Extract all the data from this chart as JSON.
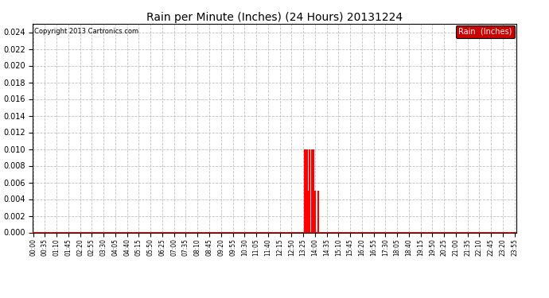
{
  "title": "Rain per Minute (Inches) (24 Hours) 20131224",
  "copyright_text": "Copyright 2013 Cartronics.com",
  "legend_label": "Rain  (Inches)",
  "legend_bg": "#cc0000",
  "legend_text_color": "#ffffff",
  "bar_color": "#ff0000",
  "baseline_color": "#ff0000",
  "background_color": "#ffffff",
  "grid_color": "#c0c0c0",
  "ylim": [
    0.0,
    0.025
  ],
  "yticks": [
    0.0,
    0.002,
    0.004,
    0.006,
    0.008,
    0.01,
    0.012,
    0.014,
    0.016,
    0.018,
    0.02,
    0.022,
    0.024
  ],
  "total_minutes": 1440,
  "rain_data": {
    "810": 0.01,
    "813": 0.01,
    "815": 0.01,
    "817": 0.01,
    "820": 0.005,
    "823": 0.01,
    "825": 0.01,
    "830": 0.01,
    "835": 0.01,
    "840": 0.005,
    "850": 0.005
  },
  "x_label_times": [
    "00:00",
    "00:35",
    "01:10",
    "01:45",
    "02:20",
    "02:55",
    "03:30",
    "04:05",
    "04:40",
    "05:15",
    "05:50",
    "06:25",
    "07:00",
    "07:35",
    "08:10",
    "08:45",
    "09:20",
    "09:55",
    "10:30",
    "11:05",
    "11:40",
    "12:15",
    "12:50",
    "13:25",
    "14:00",
    "14:35",
    "15:10",
    "15:45",
    "16:20",
    "16:55",
    "17:30",
    "18:05",
    "18:40",
    "19:15",
    "19:50",
    "20:25",
    "21:00",
    "21:35",
    "22:10",
    "22:45",
    "23:20",
    "23:55"
  ],
  "x_label_minutes": [
    0,
    35,
    70,
    105,
    140,
    175,
    210,
    245,
    280,
    315,
    350,
    385,
    420,
    455,
    490,
    525,
    560,
    595,
    630,
    665,
    700,
    735,
    770,
    805,
    840,
    875,
    910,
    945,
    980,
    1015,
    1050,
    1085,
    1120,
    1155,
    1190,
    1225,
    1260,
    1295,
    1330,
    1365,
    1400,
    1435
  ]
}
